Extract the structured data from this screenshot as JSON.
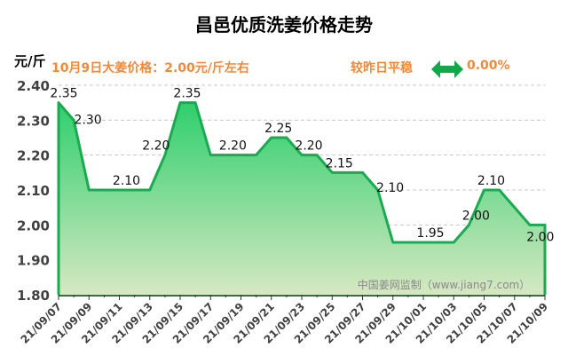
{
  "header": {
    "unit": "元/斤",
    "price_text": "10月9日大姜价格：2.00元/斤左右",
    "compare_text": "较昨日平稳",
    "change_icon": "double-arrow-icon",
    "change_pct": "0.00%"
  },
  "colors": {
    "line": "#1aab50",
    "fill_top": "#2fcf6d",
    "fill_bottom": "#d6e8c2",
    "accent": "#f08a3a"
  },
  "chart_data": {
    "type": "area",
    "title": "昌邑优质洗姜价格走势",
    "ylabel": "元/斤",
    "ylim": [
      1.8,
      2.4
    ],
    "yticks": [
      "1.80",
      "1.90",
      "2.00",
      "2.10",
      "2.20",
      "2.30",
      "2.40"
    ],
    "grid": true,
    "watermark": "中国姜网监制（www.jiang7.com）",
    "x": [
      "21/09/07",
      "21/09/08",
      "21/09/09",
      "21/09/10",
      "21/09/11",
      "21/09/12",
      "21/09/13",
      "21/09/14",
      "21/09/15",
      "21/09/16",
      "21/09/17",
      "21/09/18",
      "21/09/19",
      "21/09/20",
      "21/09/21",
      "21/09/22",
      "21/09/23",
      "21/09/24",
      "21/09/25",
      "21/09/26",
      "21/09/27",
      "21/09/28",
      "21/09/29",
      "21/09/30",
      "21/10/01",
      "21/10/02",
      "21/10/03",
      "21/10/04",
      "21/10/05",
      "21/10/06",
      "21/10/07",
      "21/10/08",
      "21/10/09"
    ],
    "values": [
      2.35,
      2.3,
      2.1,
      2.1,
      2.1,
      2.1,
      2.1,
      2.2,
      2.35,
      2.35,
      2.2,
      2.2,
      2.2,
      2.2,
      2.25,
      2.25,
      2.2,
      2.2,
      2.15,
      2.15,
      2.15,
      2.1,
      1.95,
      1.95,
      1.95,
      1.95,
      1.95,
      2.0,
      2.1,
      2.1,
      2.05,
      2.0,
      2.0
    ],
    "xticks": [
      "21/09/07",
      "21/09/09",
      "21/09/11",
      "21/09/13",
      "21/09/15",
      "21/09/17",
      "21/09/19",
      "21/09/21",
      "21/09/23",
      "21/09/25",
      "21/09/27",
      "21/09/29",
      "21/10/01",
      "21/10/03",
      "21/10/05",
      "21/10/07",
      "21/10/09"
    ],
    "data_labels": [
      {
        "date": "21/09/07",
        "text": "2.35"
      },
      {
        "date": "21/09/08",
        "text": "2.30"
      },
      {
        "date": "21/09/11",
        "text": "2.10"
      },
      {
        "date": "21/09/14",
        "text": "2.20"
      },
      {
        "date": "21/09/15",
        "text": "2.35"
      },
      {
        "date": "21/09/18",
        "text": "2.20"
      },
      {
        "date": "21/09/21",
        "text": "2.25"
      },
      {
        "date": "21/09/23",
        "text": "2.20"
      },
      {
        "date": "21/09/25",
        "text": "2.15"
      },
      {
        "date": "21/09/28",
        "text": "2.10"
      },
      {
        "date": "21/10/01",
        "text": "1.95"
      },
      {
        "date": "21/10/04",
        "text": "2.00"
      },
      {
        "date": "21/10/05",
        "text": "2.10"
      },
      {
        "date": "21/10/08",
        "text": "2.00"
      }
    ]
  }
}
